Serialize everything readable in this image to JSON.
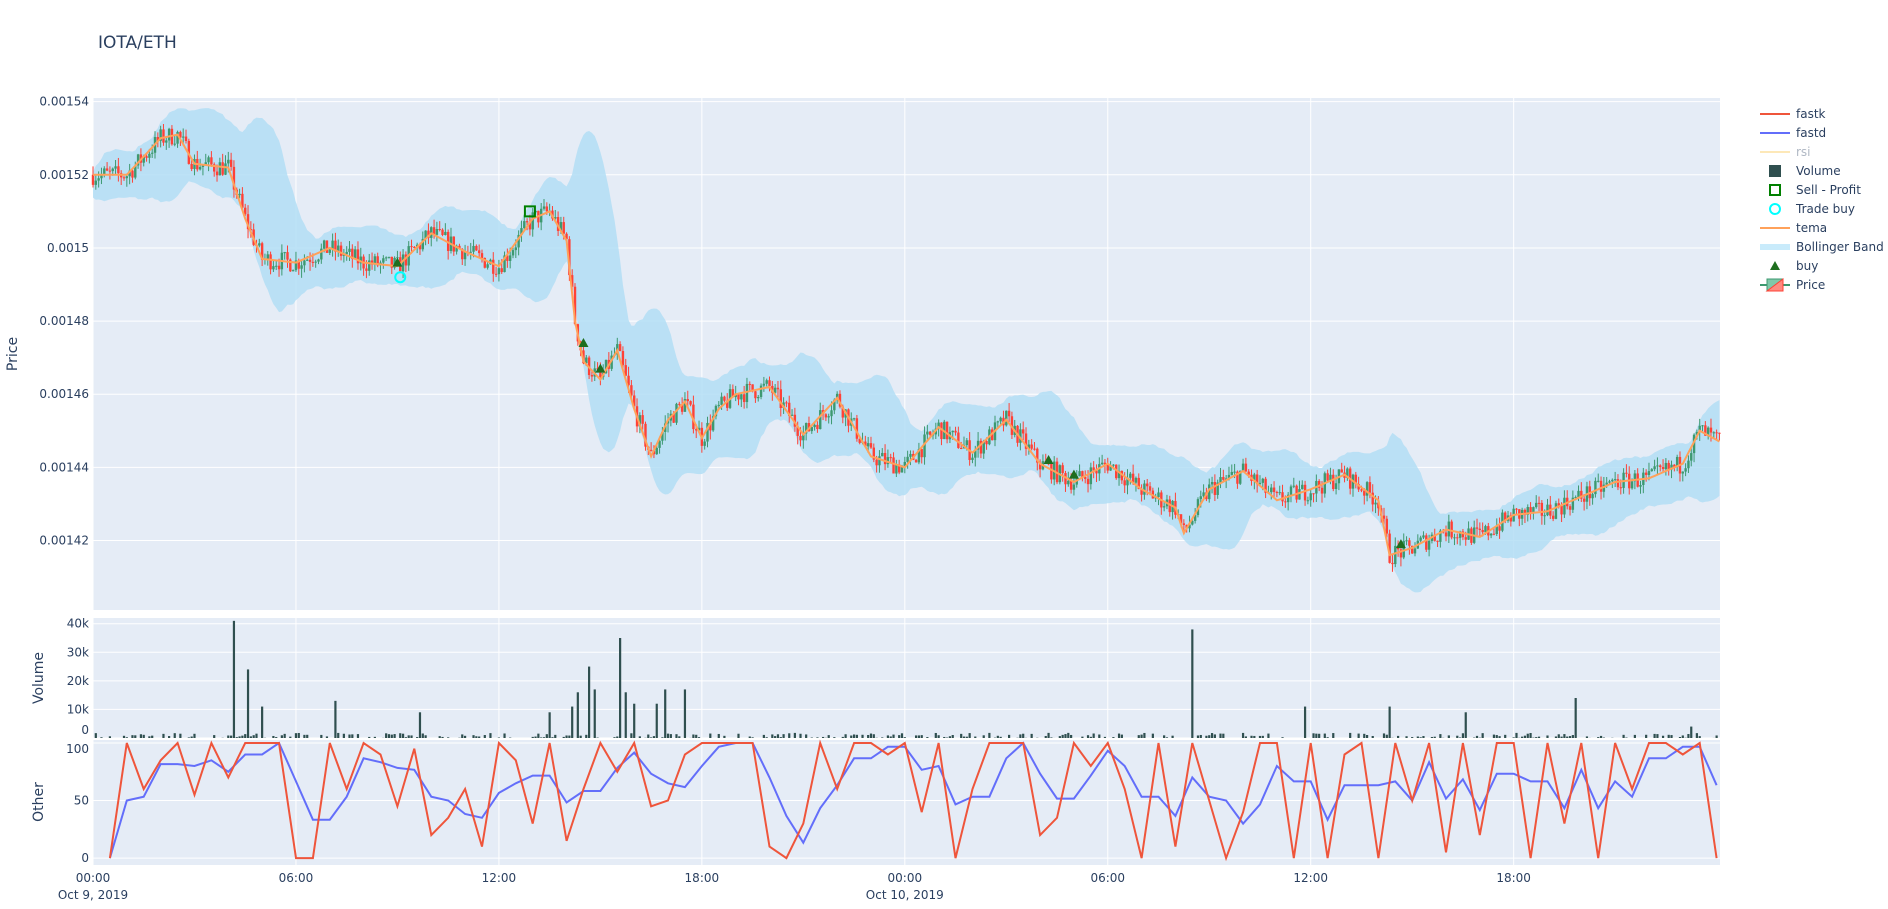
{
  "title": "IOTA/ETH",
  "chart_data": [
    {
      "type": "candlestick",
      "panel": "price",
      "ylabel": "Price",
      "ylim": [
        0.001401,
        0.001541
      ],
      "xlim": [
        "2019-10-09T00:00",
        "2019-10-11T00:06"
      ],
      "yticks": [
        0.00142,
        0.00144,
        0.00146,
        0.00148,
        0.0015,
        0.00152,
        0.00154
      ],
      "ytick_labels": [
        "0.00142",
        "0.00144",
        "0.00146",
        "0.00148",
        "0.0015",
        "0.00152",
        "0.00154"
      ],
      "grid": true,
      "price_close": [
        [
          "2019-10-09T00:00",
          0.00152
        ],
        [
          "2019-10-09T01:00",
          0.00152
        ],
        [
          "2019-10-09T02:00",
          0.00153
        ],
        [
          "2019-10-09T02:30",
          0.001531
        ],
        [
          "2019-10-09T03:00",
          0.001523
        ],
        [
          "2019-10-09T04:00",
          0.001522
        ],
        [
          "2019-10-09T04:30",
          0.001508
        ],
        [
          "2019-10-09T05:00",
          0.001497
        ],
        [
          "2019-10-09T06:00",
          0.001496
        ],
        [
          "2019-10-09T07:00",
          0.0015
        ],
        [
          "2019-10-09T08:00",
          0.001496
        ],
        [
          "2019-10-09T09:00",
          0.001495
        ],
        [
          "2019-10-09T10:00",
          0.001504
        ],
        [
          "2019-10-09T11:00",
          0.001499
        ],
        [
          "2019-10-09T12:00",
          0.001495
        ],
        [
          "2019-10-09T13:00",
          0.001508
        ],
        [
          "2019-10-09T13:30",
          0.00151
        ],
        [
          "2019-10-09T14:00",
          0.001502
        ],
        [
          "2019-10-09T14:15",
          0.00148
        ],
        [
          "2019-10-09T14:30",
          0.001469
        ],
        [
          "2019-10-09T15:00",
          0.001464
        ],
        [
          "2019-10-09T15:30",
          0.001472
        ],
        [
          "2019-10-09T16:00",
          0.001456
        ],
        [
          "2019-10-09T16:30",
          0.001443
        ],
        [
          "2019-10-09T17:00",
          0.001453
        ],
        [
          "2019-10-09T17:30",
          0.001458
        ],
        [
          "2019-10-09T18:00",
          0.001448
        ],
        [
          "2019-10-09T18:30",
          0.001456
        ],
        [
          "2019-10-09T19:00",
          0.00146
        ],
        [
          "2019-10-09T20:00",
          0.001462
        ],
        [
          "2019-10-09T21:00",
          0.001449
        ],
        [
          "2019-10-09T22:00",
          0.001459
        ],
        [
          "2019-10-09T23:00",
          0.001443
        ],
        [
          "2019-10-10T00:00",
          0.00144
        ],
        [
          "2019-10-10T01:00",
          0.001451
        ],
        [
          "2019-10-10T02:00",
          0.001444
        ],
        [
          "2019-10-10T03:00",
          0.001453
        ],
        [
          "2019-10-10T04:00",
          0.001441
        ],
        [
          "2019-10-10T05:00",
          0.001436
        ],
        [
          "2019-10-10T06:00",
          0.001441
        ],
        [
          "2019-10-10T07:00",
          0.001434
        ],
        [
          "2019-10-10T08:00",
          0.001429
        ],
        [
          "2019-10-10T08:15",
          0.001422
        ],
        [
          "2019-10-10T09:00",
          0.001434
        ],
        [
          "2019-10-10T10:00",
          0.001439
        ],
        [
          "2019-10-10T11:00",
          0.001431
        ],
        [
          "2019-10-10T12:00",
          0.001434
        ],
        [
          "2019-10-10T13:00",
          0.001438
        ],
        [
          "2019-10-10T14:00",
          0.001431
        ],
        [
          "2019-10-10T14:20",
          0.001416
        ],
        [
          "2019-10-10T15:00",
          0.001418
        ],
        [
          "2019-10-10T16:00",
          0.001423
        ],
        [
          "2019-10-10T17:00",
          0.001421
        ],
        [
          "2019-10-10T18:00",
          0.001427
        ],
        [
          "2019-10-10T19:00",
          0.001428
        ],
        [
          "2019-10-10T20:00",
          0.001432
        ],
        [
          "2019-10-10T21:00",
          0.001436
        ],
        [
          "2019-10-10T22:00",
          0.001437
        ],
        [
          "2019-10-10T23:00",
          0.001441
        ],
        [
          "2019-10-10T23:30",
          0.00145
        ],
        [
          "2019-10-11T00:06",
          0.001447
        ]
      ],
      "buy": [
        [
          "2019-10-09T09:00",
          0.001496
        ],
        [
          "2019-10-09T14:30",
          0.001474
        ],
        [
          "2019-10-09T15:00",
          0.001467
        ],
        [
          "2019-10-10T04:15",
          0.001442
        ],
        [
          "2019-10-10T05:00",
          0.001438
        ],
        [
          "2019-10-10T14:40",
          0.001419
        ]
      ],
      "trade_buy": [
        [
          "2019-10-09T09:05",
          0.001492
        ]
      ],
      "sell_profit": [
        [
          "2019-10-09T12:55",
          0.00151
        ]
      ]
    },
    {
      "type": "bar",
      "panel": "volume",
      "ylabel": "Volume",
      "ylim": [
        0,
        42000
      ],
      "yticks": [
        0,
        10000,
        20000,
        30000,
        40000
      ],
      "ytick_labels": [
        "0",
        "10k",
        "20k",
        "30k",
        "40k"
      ],
      "spikes": [
        [
          "2019-10-09T04:10",
          41000
        ],
        [
          "2019-10-09T04:35",
          24000
        ],
        [
          "2019-10-09T05:00",
          11000
        ],
        [
          "2019-10-09T07:10",
          13000
        ],
        [
          "2019-10-09T09:40",
          9000
        ],
        [
          "2019-10-09T13:30",
          9000
        ],
        [
          "2019-10-09T14:10",
          11000
        ],
        [
          "2019-10-09T14:20",
          16000
        ],
        [
          "2019-10-09T14:40",
          25000
        ],
        [
          "2019-10-09T14:50",
          17000
        ],
        [
          "2019-10-09T15:35",
          35000
        ],
        [
          "2019-10-09T15:45",
          16000
        ],
        [
          "2019-10-09T16:00",
          12000
        ],
        [
          "2019-10-09T16:40",
          12000
        ],
        [
          "2019-10-09T16:55",
          17000
        ],
        [
          "2019-10-09T17:30",
          17000
        ],
        [
          "2019-10-10T08:30",
          38000
        ],
        [
          "2019-10-10T11:50",
          11000
        ],
        [
          "2019-10-10T14:20",
          11000
        ],
        [
          "2019-10-10T16:35",
          9000
        ],
        [
          "2019-10-10T19:50",
          14000
        ],
        [
          "2019-10-10T23:15",
          4000
        ]
      ]
    },
    {
      "type": "line",
      "panel": "other",
      "ylabel": "Other",
      "ylim": [
        -6,
        102.6
      ],
      "yticks": [
        0,
        50,
        100
      ],
      "ytick_labels": [
        "0",
        "50",
        "100"
      ],
      "x_start": "2019-10-09T00:00",
      "x_step_minutes": 30,
      "fastk": [
        null,
        0,
        100,
        60,
        85,
        100,
        55,
        100,
        70,
        100,
        100,
        100,
        0,
        0,
        100,
        60,
        100,
        90,
        45,
        95,
        20,
        35,
        60,
        10,
        100,
        85,
        30,
        100,
        15,
        60,
        100,
        75,
        100,
        45,
        50,
        90,
        100,
        100,
        100,
        100,
        10,
        0,
        30,
        100,
        60,
        100,
        100,
        90,
        100,
        40,
        100,
        0,
        60,
        100,
        100,
        100,
        20,
        35,
        100,
        80,
        100,
        60,
        0,
        100,
        10,
        100,
        50,
        0,
        40,
        100,
        100,
        0,
        100,
        0,
        90,
        100,
        0,
        100,
        50,
        100,
        5,
        100,
        20,
        100,
        100,
        0,
        100,
        30,
        100,
        0,
        100,
        60,
        100,
        100,
        90,
        100,
        0
      ]
    }
  ],
  "xaxis": {
    "ticks": [
      "2019-10-09T00:00",
      "2019-10-09T06:00",
      "2019-10-09T12:00",
      "2019-10-09T18:00",
      "2019-10-10T00:00",
      "2019-10-10T06:00",
      "2019-10-10T12:00",
      "2019-10-10T18:00"
    ],
    "labels": [
      "00:00",
      "06:00",
      "12:00",
      "18:00",
      "00:00",
      "06:00",
      "12:00",
      "18:00"
    ],
    "date_labels": [
      "Oct 9, 2019",
      "",
      "",
      "",
      "Oct 10, 2019",
      "",
      "",
      ""
    ]
  },
  "legend": {
    "placement": "right",
    "items": [
      {
        "label": "fastk",
        "symbol": "line",
        "color": "#ef553b"
      },
      {
        "label": "fastd",
        "symbol": "line",
        "color": "#636efa"
      },
      {
        "label": "rsi",
        "symbol": "line",
        "color": "#fde8b8",
        "hidden": true
      },
      {
        "label": "Volume",
        "symbol": "square",
        "color": "#2f4f4f"
      },
      {
        "label": "Sell - Profit",
        "symbol": "square-open",
        "color": "#008000"
      },
      {
        "label": "Trade buy",
        "symbol": "circle-open",
        "color": "#00ffff"
      },
      {
        "label": "tema",
        "symbol": "line",
        "color": "#ffa15a"
      },
      {
        "label": "Bollinger Band",
        "symbol": "band",
        "color": "#c9ebfb"
      },
      {
        "label": "buy",
        "symbol": "triangle",
        "color": "#1f6e1f"
      },
      {
        "label": "Price",
        "symbol": "candle",
        "color": "#3d9970"
      }
    ]
  },
  "colors": {
    "increasing": "#3d9970",
    "decreasing": "#ff4136",
    "band": "#b3def5",
    "tema": "#ffa15a",
    "volume": "#2f4f4f",
    "plot_bg": "#e5ecf6"
  }
}
